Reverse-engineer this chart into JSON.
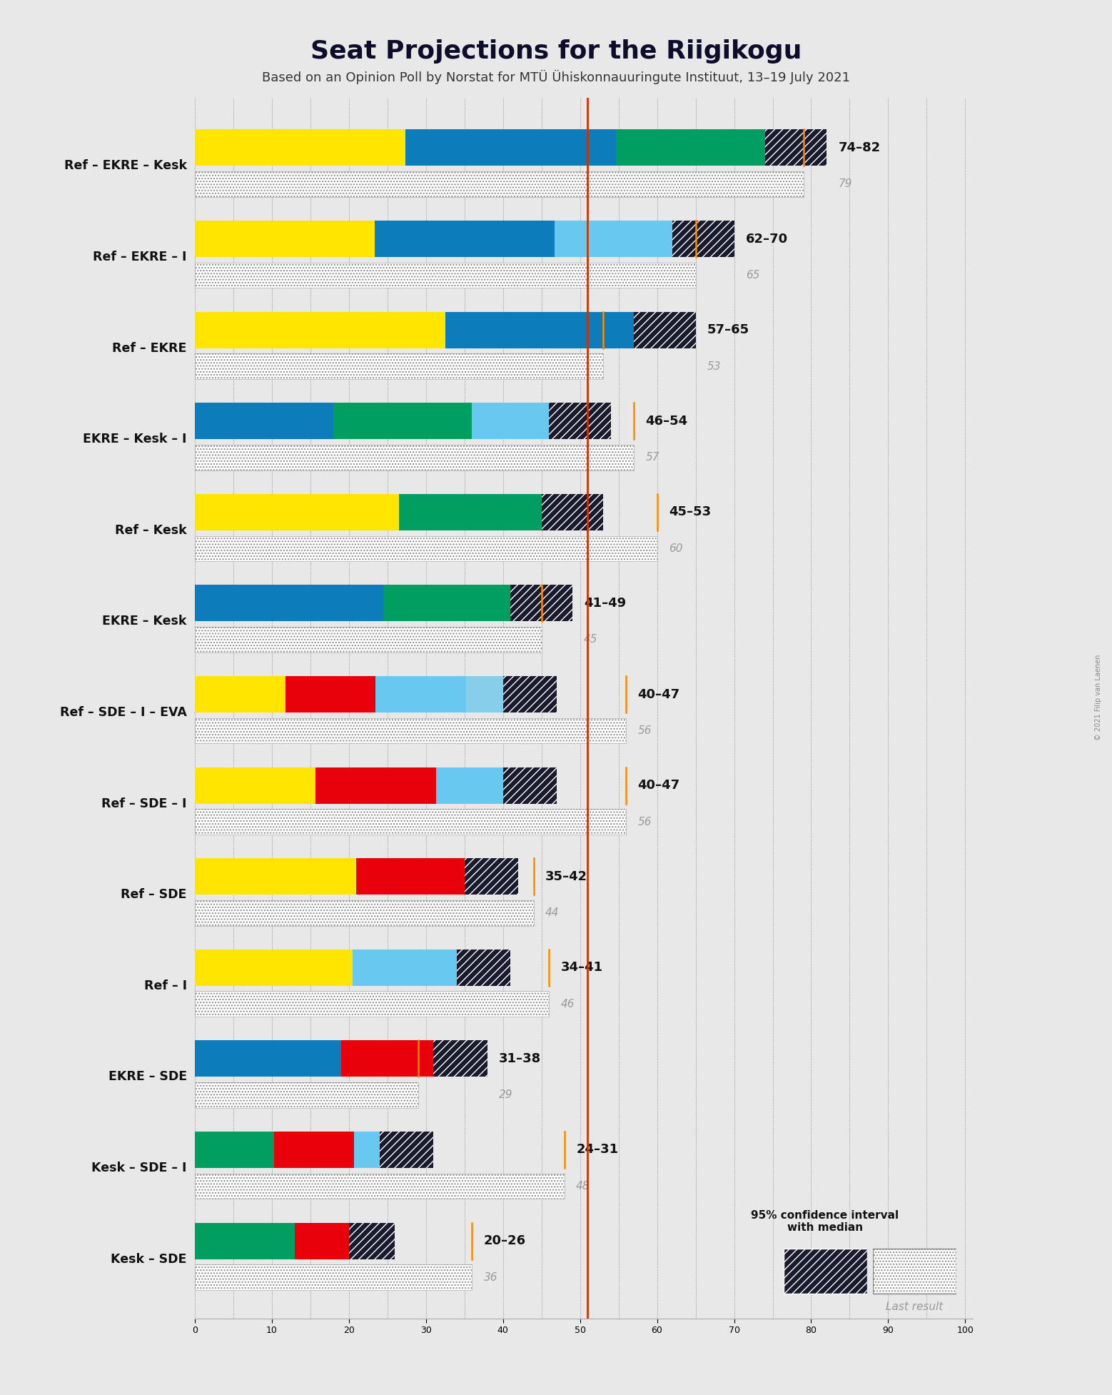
{
  "title": "Seat Projections for the Riigikogu",
  "subtitle": "Based on an Opinion Poll by Norstat for MTÜ Ühiskonnauuringute Instituut, 13–19 July 2021",
  "copyright": "© 2021 Filip van Laenen",
  "background_color": "#e8e8e8",
  "majority_line": 51,
  "xlim_max": 101,
  "coalitions": [
    {
      "label": "Ref – EKRE – Kesk",
      "underline": false,
      "low": 74,
      "high": 82,
      "median": 79,
      "last_result": 79,
      "colors": [
        "#FFE500",
        "#0C7CBA",
        "#009E60"
      ],
      "ci_color": "#1a1a2e"
    },
    {
      "label": "Ref – EKRE – I",
      "underline": false,
      "low": 62,
      "high": 70,
      "median": 65,
      "last_result": 65,
      "colors": [
        "#FFE500",
        "#0C7CBA",
        "#68C8F0"
      ],
      "ci_color": "#1a1a2e"
    },
    {
      "label": "Ref – EKRE",
      "underline": false,
      "low": 57,
      "high": 65,
      "median": 53,
      "last_result": 53,
      "colors": [
        "#FFE500",
        "#0C7CBA"
      ],
      "ci_color": "#1a1a2e"
    },
    {
      "label": "EKRE – Kesk – I",
      "underline": true,
      "low": 46,
      "high": 54,
      "median": 57,
      "last_result": 57,
      "colors": [
        "#0C7CBA",
        "#009E60",
        "#68C8F0"
      ],
      "ci_color": "#1a1a2e"
    },
    {
      "label": "Ref – Kesk",
      "underline": false,
      "low": 45,
      "high": 53,
      "median": 60,
      "last_result": 60,
      "colors": [
        "#FFE500",
        "#009E60"
      ],
      "ci_color": "#1a1a2e"
    },
    {
      "label": "EKRE – Kesk",
      "underline": false,
      "low": 41,
      "high": 49,
      "median": 45,
      "last_result": 45,
      "colors": [
        "#0C7CBA",
        "#009E60"
      ],
      "ci_color": "#1a1a2e"
    },
    {
      "label": "Ref – SDE – I – EVA",
      "underline": false,
      "low": 40,
      "high": 47,
      "median": 56,
      "last_result": 56,
      "colors": [
        "#FFE500",
        "#E8000B",
        "#68C8F0",
        "#87CEEB"
      ],
      "ci_color": "#1a1a2e"
    },
    {
      "label": "Ref – SDE – I",
      "underline": false,
      "low": 40,
      "high": 47,
      "median": 56,
      "last_result": 56,
      "colors": [
        "#FFE500",
        "#E8000B",
        "#68C8F0"
      ],
      "ci_color": "#1a1a2e"
    },
    {
      "label": "Ref – SDE",
      "underline": false,
      "low": 35,
      "high": 42,
      "median": 44,
      "last_result": 44,
      "colors": [
        "#FFE500",
        "#E8000B"
      ],
      "ci_color": "#1a1a2e"
    },
    {
      "label": "Ref – I",
      "underline": false,
      "low": 34,
      "high": 41,
      "median": 46,
      "last_result": 46,
      "colors": [
        "#FFE500",
        "#68C8F0"
      ],
      "ci_color": "#1a1a2e"
    },
    {
      "label": "EKRE – SDE",
      "underline": false,
      "low": 31,
      "high": 38,
      "median": 29,
      "last_result": 29,
      "colors": [
        "#0C7CBA",
        "#E8000B"
      ],
      "ci_color": "#1a1a2e"
    },
    {
      "label": "Kesk – SDE – I",
      "underline": false,
      "low": 24,
      "high": 31,
      "median": 48,
      "last_result": 48,
      "colors": [
        "#009E60",
        "#E8000B",
        "#68C8F0"
      ],
      "ci_color": "#1a1a2e"
    },
    {
      "label": "Kesk – SDE",
      "underline": false,
      "low": 20,
      "high": 26,
      "median": 36,
      "last_result": 36,
      "colors": [
        "#009E60",
        "#E8000B"
      ],
      "ci_color": "#1a1a2e"
    }
  ]
}
